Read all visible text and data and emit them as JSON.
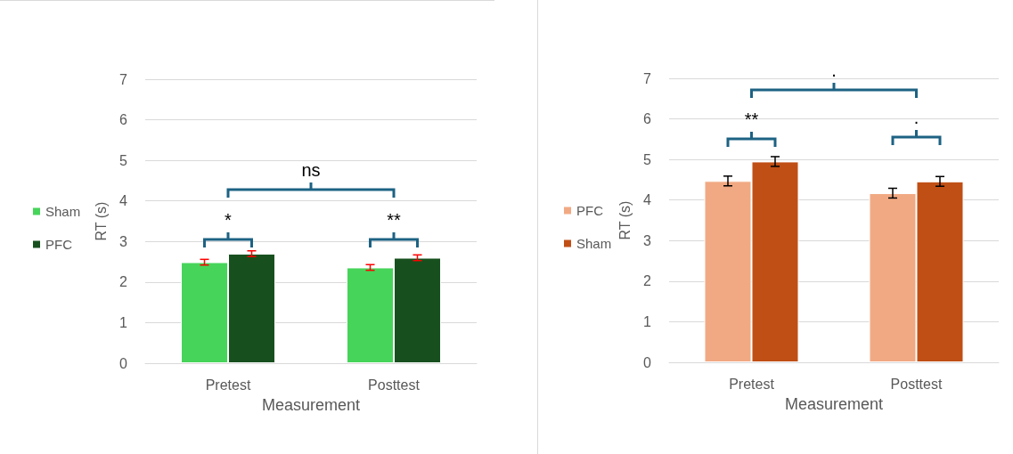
{
  "chart_data": [
    {
      "type": "bar",
      "categories": [
        "Pretest",
        "Posttest"
      ],
      "xlabel": "Measurement",
      "ylabel": "RT (s)",
      "ylim": [
        0,
        7
      ],
      "yticks": [
        0,
        1,
        2,
        3,
        4,
        5,
        6,
        7
      ],
      "grid": "y",
      "legend": "left",
      "series": [
        {
          "name": "Sham",
          "color": "#46d45a",
          "values": [
            2.49,
            2.36
          ],
          "errors": [
            0.07,
            0.07
          ]
        },
        {
          "name": "PFC",
          "color": "#17501e",
          "values": [
            2.7,
            2.6
          ],
          "errors": [
            0.07,
            0.07
          ]
        }
      ],
      "annotations": [
        "*",
        "**",
        "ns"
      ]
    },
    {
      "type": "bar",
      "categories": [
        "Pretest",
        "Posttest"
      ],
      "xlabel": "Measurement",
      "ylabel": "RT (s)",
      "ylim": [
        0,
        7
      ],
      "yticks": [
        0,
        1,
        2,
        3,
        4,
        5,
        6,
        7
      ],
      "grid": "y",
      "legend": "left",
      "series": [
        {
          "name": "PFC",
          "color": "#f1a983",
          "values": [
            4.47,
            4.17
          ],
          "errors": [
            0.12,
            0.12
          ]
        },
        {
          "name": "Sham",
          "color": "#c04f15",
          "values": [
            4.95,
            4.46
          ],
          "errors": [
            0.12,
            0.12
          ]
        }
      ],
      "annotations": [
        "**",
        ".",
        "."
      ]
    }
  ]
}
